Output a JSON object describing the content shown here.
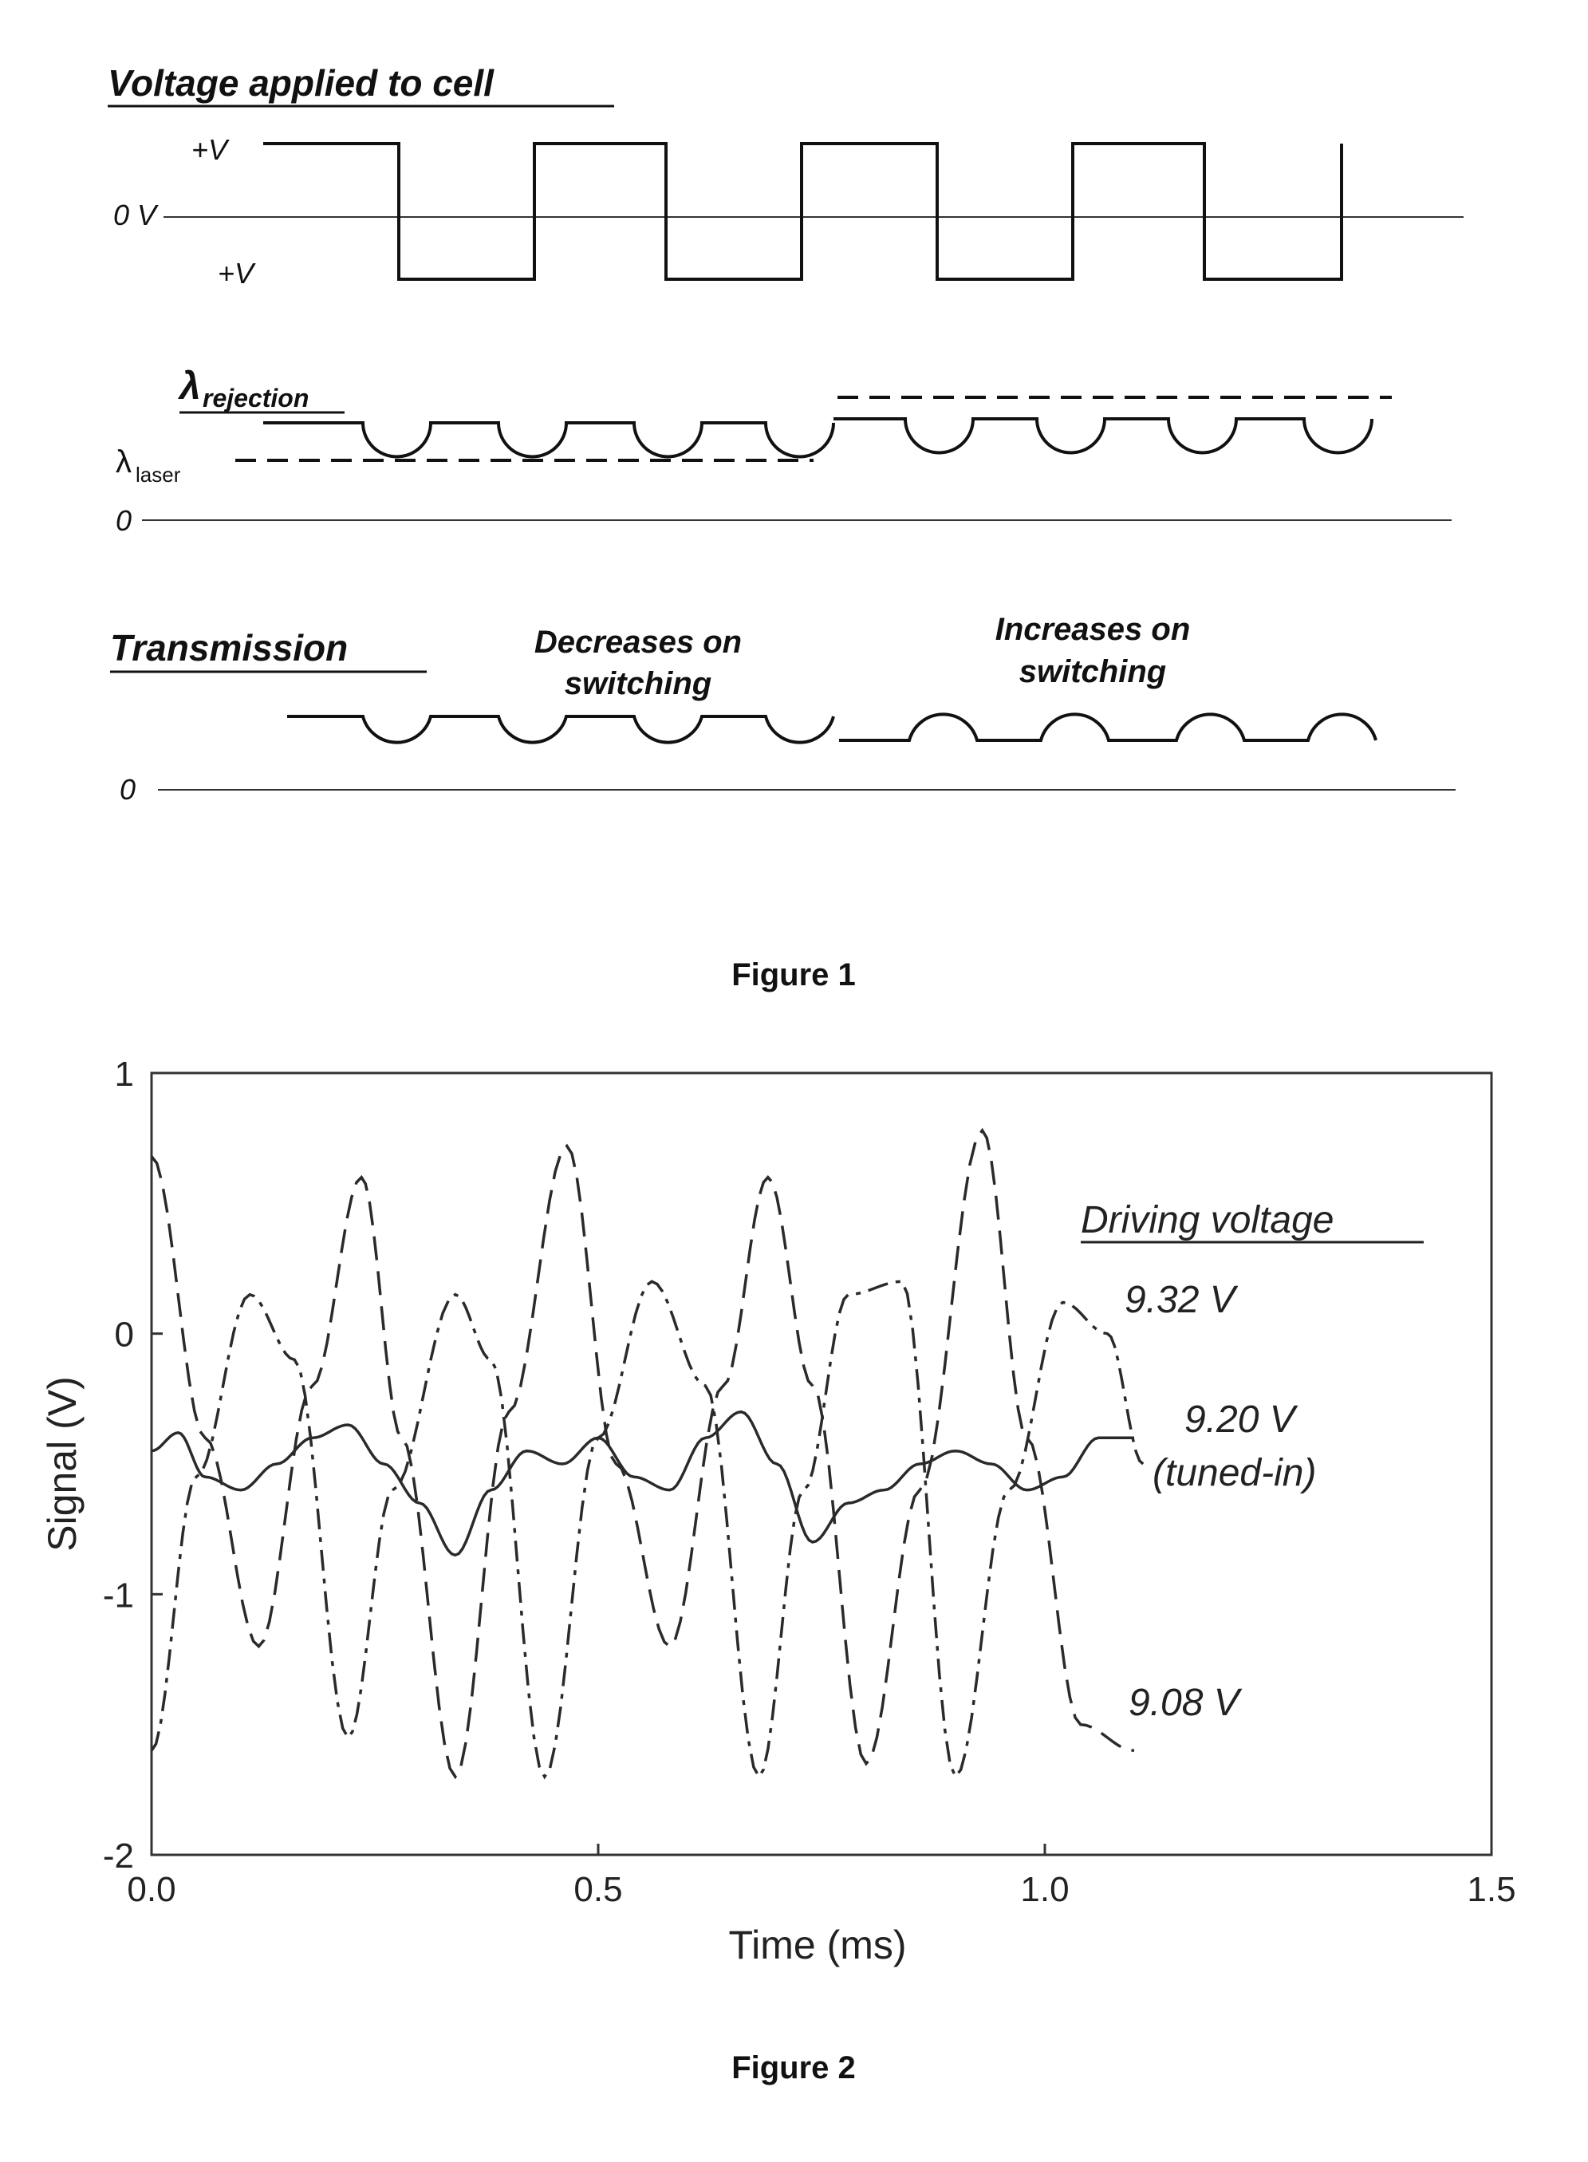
{
  "figure1": {
    "caption": "Figure 1",
    "voltage_heading": "Voltage applied to cell",
    "plus_v_top": "+V",
    "zero_v": "0 V",
    "plus_v_bottom": "+V",
    "rejection_symbol": "λ",
    "rejection_sub": "rejection",
    "laser_symbol": "λ",
    "laser_sub": "laser",
    "zero_mid": "0",
    "transmission_heading": "Transmission",
    "decreases_line1": "Decreases on",
    "decreases_line2": "switching",
    "increases_line1": "Increases on",
    "increases_line2": "switching",
    "zero_bottom": "0"
  },
  "figure2": {
    "caption": "Figure 2"
  },
  "chart_data": {
    "type": "line",
    "xlabel": "Time (ms)",
    "ylabel": "Signal (V)",
    "xlim": [
      0.0,
      1.5
    ],
    "ylim": [
      -2,
      1
    ],
    "xticks": [
      "0.0",
      "0.5",
      "1.0",
      "1.5"
    ],
    "yticks": [
      "1",
      "0",
      "-1",
      "-2"
    ],
    "legend_title": "Driving voltage",
    "series": [
      {
        "name": "9.32 V",
        "style": "dash-dot",
        "x": [
          0.0,
          0.05,
          0.11,
          0.16,
          0.22,
          0.27,
          0.34,
          0.38,
          0.44,
          0.5,
          0.56,
          0.62,
          0.68,
          0.73,
          0.78,
          0.84,
          0.9,
          0.96,
          1.02,
          1.07,
          1.11
        ],
        "y": [
          -1.6,
          -0.55,
          0.15,
          -0.1,
          -1.55,
          -0.6,
          0.15,
          -0.1,
          -1.7,
          -0.4,
          0.2,
          -0.2,
          -1.7,
          -0.6,
          0.15,
          0.2,
          -1.7,
          -0.6,
          0.12,
          0.0,
          -0.5
        ]
      },
      {
        "name": "9.20 V",
        "annotation": "(tuned-in)",
        "style": "solid",
        "x": [
          0.0,
          0.03,
          0.06,
          0.1,
          0.14,
          0.18,
          0.22,
          0.26,
          0.3,
          0.34,
          0.38,
          0.42,
          0.46,
          0.5,
          0.54,
          0.58,
          0.62,
          0.66,
          0.7,
          0.74,
          0.78,
          0.82,
          0.86,
          0.9,
          0.94,
          0.98,
          1.02,
          1.06,
          1.1
        ],
        "y": [
          -0.45,
          -0.38,
          -0.55,
          -0.6,
          -0.5,
          -0.4,
          -0.35,
          -0.5,
          -0.65,
          -0.85,
          -0.6,
          -0.45,
          -0.5,
          -0.4,
          -0.55,
          -0.6,
          -0.4,
          -0.3,
          -0.5,
          -0.8,
          -0.65,
          -0.6,
          -0.5,
          -0.45,
          -0.5,
          -0.6,
          -0.55,
          -0.4,
          -0.4
        ]
      },
      {
        "name": "9.08 V",
        "style": "dashed",
        "x": [
          0.0,
          0.06,
          0.12,
          0.18,
          0.235,
          0.28,
          0.34,
          0.4,
          0.465,
          0.52,
          0.58,
          0.64,
          0.69,
          0.74,
          0.8,
          0.86,
          0.93,
          0.98,
          1.04,
          1.1
        ],
        "y": [
          0.68,
          -0.4,
          -1.2,
          -0.2,
          0.6,
          -0.4,
          -1.7,
          -0.3,
          0.72,
          -0.5,
          -1.2,
          -0.2,
          0.6,
          -0.2,
          -1.65,
          -0.6,
          0.78,
          -0.4,
          -1.5,
          -1.6
        ]
      }
    ]
  }
}
